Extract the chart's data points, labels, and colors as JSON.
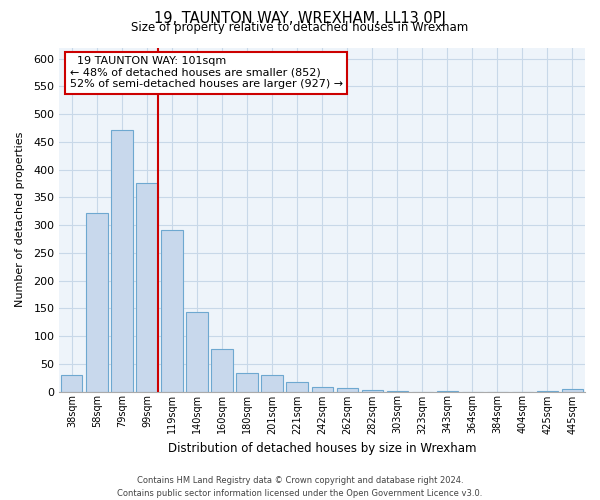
{
  "title": "19, TAUNTON WAY, WREXHAM, LL13 0PJ",
  "subtitle": "Size of property relative to detached houses in Wrexham",
  "xlabel": "Distribution of detached houses by size in Wrexham",
  "ylabel": "Number of detached properties",
  "bar_labels": [
    "38sqm",
    "58sqm",
    "79sqm",
    "99sqm",
    "119sqm",
    "140sqm",
    "160sqm",
    "180sqm",
    "201sqm",
    "221sqm",
    "242sqm",
    "262sqm",
    "282sqm",
    "303sqm",
    "323sqm",
    "343sqm",
    "364sqm",
    "384sqm",
    "404sqm",
    "425sqm",
    "445sqm"
  ],
  "bar_values": [
    30,
    322,
    472,
    375,
    291,
    143,
    76,
    34,
    30,
    17,
    8,
    6,
    2,
    1,
    0,
    1,
    0,
    0,
    0,
    1,
    4
  ],
  "bar_color": "#c8d8ec",
  "bar_edge_color": "#6ea8d0",
  "highlight_bar_index": 3,
  "highlight_line_color": "#cc0000",
  "annotation_title": "19 TAUNTON WAY: 101sqm",
  "annotation_line1": "← 48% of detached houses are smaller (852)",
  "annotation_line2": "52% of semi-detached houses are larger (927) →",
  "annotation_box_edge": "#cc0000",
  "ylim": [
    0,
    620
  ],
  "yticks": [
    0,
    50,
    100,
    150,
    200,
    250,
    300,
    350,
    400,
    450,
    500,
    550,
    600
  ],
  "footer_line1": "Contains HM Land Registry data © Crown copyright and database right 2024.",
  "footer_line2": "Contains public sector information licensed under the Open Government Licence v3.0.",
  "background_color": "#ffffff",
  "grid_color": "#c8d8e8",
  "plot_bg_color": "#eef4fa"
}
